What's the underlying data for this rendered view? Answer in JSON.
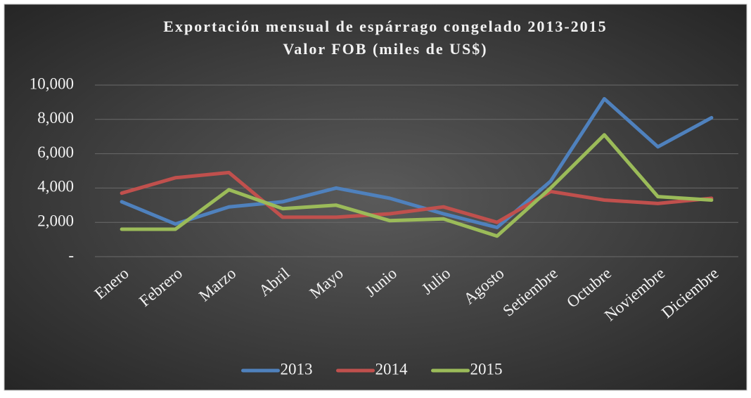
{
  "chart_data": {
    "type": "line",
    "title": "Exportación mensual de espárrago congelado 2013-2015",
    "subtitle": "Valor FOB (miles de US$)",
    "categories": [
      "Enero",
      "Febrero",
      "Marzo",
      "Abril",
      "Mayo",
      "Junio",
      "Julio",
      "Agosto",
      "Setiembre",
      "Octubre",
      "Noviembre",
      "Diciembre"
    ],
    "series": [
      {
        "name": "2013",
        "color": "#4f81bd",
        "values": [
          3200,
          1900,
          2900,
          3200,
          4000,
          3400,
          2500,
          1700,
          4400,
          9200,
          6400,
          8100
        ]
      },
      {
        "name": "2014",
        "color": "#c0504d",
        "values": [
          3700,
          4600,
          4900,
          2300,
          2300,
          2500,
          2900,
          2000,
          3800,
          3300,
          3100,
          3400
        ]
      },
      {
        "name": "2015",
        "color": "#9bbb59",
        "values": [
          1600,
          1600,
          3900,
          2800,
          3000,
          2100,
          2200,
          1200,
          4000,
          7100,
          3500,
          3300
        ]
      }
    ],
    "ylim": [
      0,
      10000
    ],
    "yticks": [
      {
        "value": 0,
        "label": "-"
      },
      {
        "value": 2000,
        "label": "2,000"
      },
      {
        "value": 4000,
        "label": "4,000"
      },
      {
        "value": 6000,
        "label": "6,000"
      },
      {
        "value": 8000,
        "label": "8,000"
      },
      {
        "value": 10000,
        "label": "10,000"
      }
    ],
    "grid": true,
    "legend": "bottom"
  }
}
